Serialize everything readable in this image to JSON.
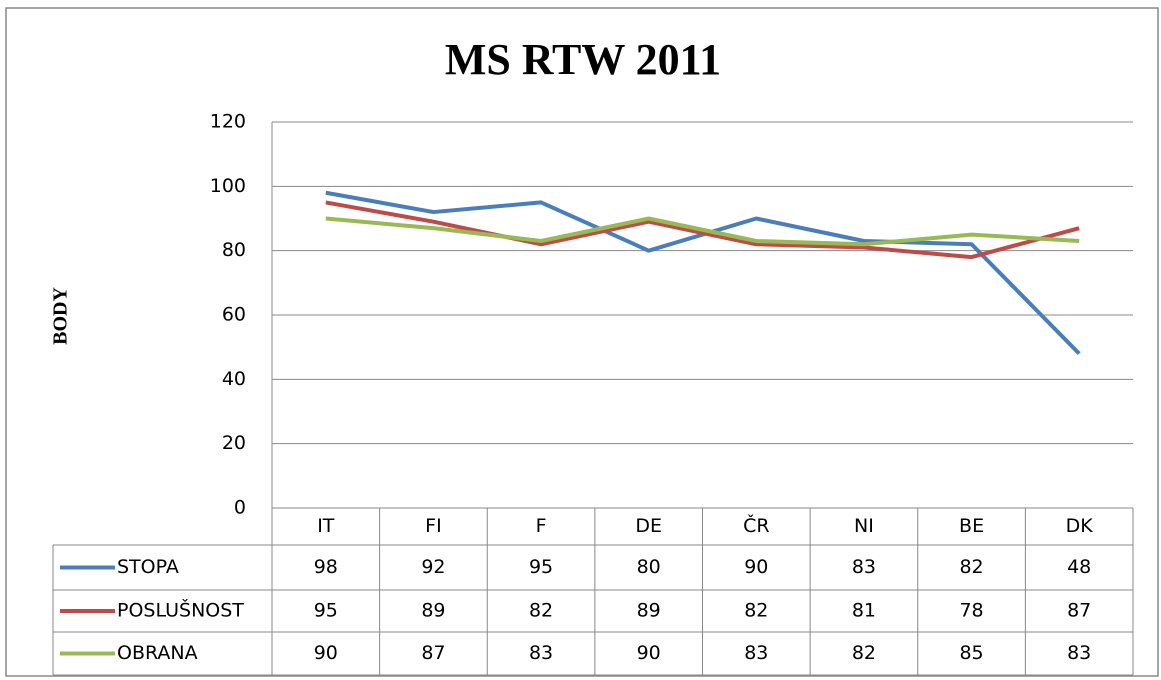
{
  "chart_data": {
    "type": "line",
    "title": "MS RTW 2011",
    "y_label": "BODY",
    "categories": [
      "IT",
      "FI",
      "F",
      "DE",
      "ČR",
      "NI",
      "BE",
      "DK"
    ],
    "series": [
      {
        "name": "STOPA",
        "color": "#4a7ebb",
        "values": [
          98,
          92,
          95,
          80,
          90,
          83,
          82,
          48
        ]
      },
      {
        "name": "POSLUŠNOST",
        "color": "#be4b48",
        "values": [
          95,
          89,
          82,
          89,
          82,
          81,
          78,
          87
        ]
      },
      {
        "name": "OBRANA",
        "color": "#98b954",
        "values": [
          90,
          87,
          83,
          90,
          83,
          82,
          85,
          83
        ]
      }
    ],
    "ylim": [
      0,
      120
    ],
    "yticks": [
      0,
      20,
      40,
      60,
      80,
      100,
      120
    ],
    "grid": true,
    "data_table": true
  }
}
